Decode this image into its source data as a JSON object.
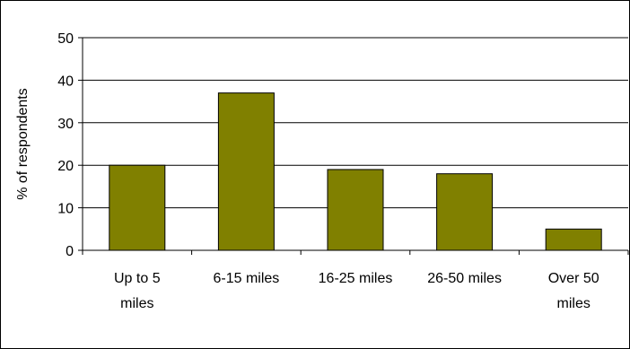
{
  "chart_data": {
    "type": "bar",
    "categories": [
      [
        "Up to 5",
        "miles"
      ],
      [
        "6-15 miles"
      ],
      [
        "16-25 miles"
      ],
      [
        "26-50 miles"
      ],
      [
        "Over 50",
        "miles"
      ]
    ],
    "values": [
      20,
      37,
      19,
      18,
      5
    ],
    "ylabel": "% of respondents",
    "ylim": [
      0,
      50
    ],
    "yticks": [
      0,
      10,
      20,
      30,
      40,
      50
    ],
    "grid": true,
    "bar_color": "#808000"
  }
}
